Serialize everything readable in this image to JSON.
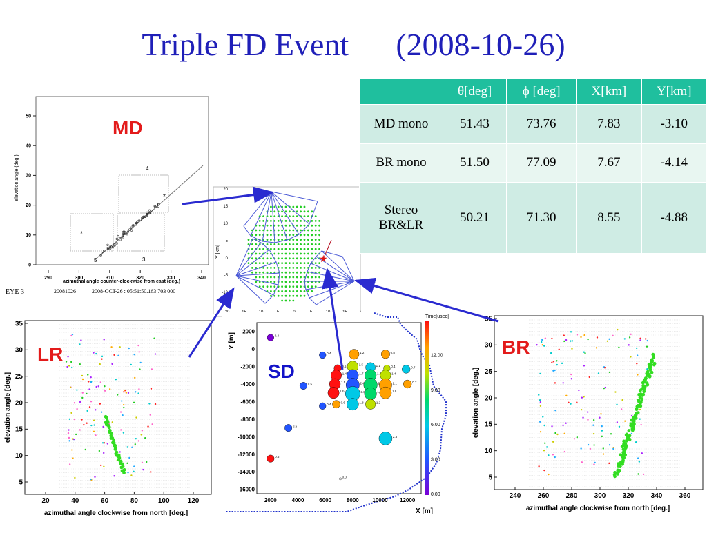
{
  "title": "Triple FD Event\t(2008-10-26)",
  "labels": {
    "md": "MD",
    "lr": "LR",
    "br": "BR",
    "sd": "SD"
  },
  "table": {
    "headers": [
      "",
      "θ[deg]",
      "ϕ [deg]",
      "X[km]",
      "Y[km]"
    ],
    "rows": [
      {
        "name": "MD mono",
        "theta": "51.43",
        "phi": "73.76",
        "x": "7.83",
        "y": "-3.10"
      },
      {
        "name": "BR mono",
        "theta": "51.50",
        "phi": "77.09",
        "x": "7.67",
        "y": "-4.14"
      },
      {
        "name": "Stereo BR&LR",
        "theta": "50.21",
        "phi": "71.30",
        "x": "8.55",
        "y": "-4.88"
      }
    ]
  },
  "md_plot": {
    "ylabel": "elevation angle (deg.)",
    "xlabel": "azimuthal angle counter-clockwise from east (deg.)",
    "xticks": [
      "290",
      "300",
      "310",
      "320",
      "330",
      "340"
    ],
    "yticks": [
      "0",
      "10",
      "20",
      "30",
      "40",
      "50"
    ],
    "mirror_labels": [
      "1",
      "2",
      "3",
      "4",
      "5"
    ],
    "footer": {
      "eye": "EYE 3",
      "date": "20081026",
      "time": "2008-OCT-26 : 05:51:50.163 703 000"
    }
  },
  "map_plot": {
    "ylabel": "Y [km]",
    "xticks": [
      "-20",
      "-15",
      "-10",
      "-5",
      "0",
      "5",
      "10",
      "15",
      "20"
    ],
    "yticks": [
      "20",
      "15",
      "10",
      "5",
      "0",
      "-5",
      "-10"
    ]
  },
  "lr_plot": {
    "ylabel": "elevation angle [deg.]",
    "xlabel": "azimuthal angle clockwise from north [deg.]",
    "xticks": [
      "20",
      "40",
      "60",
      "80",
      "100",
      "120"
    ],
    "yticks": [
      "35",
      "30",
      "25",
      "20",
      "15",
      "10",
      "5"
    ]
  },
  "br_plot": {
    "ylabel": "elevation angle [deg.]",
    "xlabel": "azimuthal angle clockwise from north [deg.]",
    "xticks": [
      "240",
      "260",
      "280",
      "300",
      "320",
      "340",
      "360"
    ],
    "yticks": [
      "35",
      "30",
      "25",
      "20",
      "15",
      "10",
      "5"
    ]
  },
  "sd_plot": {
    "ylabel": "Y [m]",
    "xlabel": "X [m]",
    "color_title": "Time[usec]",
    "xticks": [
      "2000",
      "4000",
      "6000",
      "8000",
      "10000",
      "12000"
    ],
    "yticks": [
      "2000",
      "0",
      "-2000",
      "-4000",
      "-6000",
      "-8000",
      "-10000",
      "-12000",
      "-14000",
      "-16000"
    ],
    "color_ticks": [
      "12.00",
      "9.00",
      "6.00",
      "3.00",
      "0.00"
    ],
    "counters": [
      {
        "x": 2000,
        "y": 1300,
        "label": "0.4",
        "t": 0.5
      },
      {
        "x": 5800,
        "y": -700,
        "label": "0.4",
        "t": 2.0
      },
      {
        "x": 8100,
        "y": -600,
        "label": "1.2",
        "t": 9.5
      },
      {
        "x": 10400,
        "y": -600,
        "label": "0.8",
        "t": 9.0
      },
      {
        "x": 6900,
        "y": -2200,
        "label": "0.5",
        "t": 11.0
      },
      {
        "x": 8000,
        "y": -2000,
        "label": "1.5",
        "t": 8.5
      },
      {
        "x": 9300,
        "y": -2100,
        "label": "1.1",
        "t": 4.0
      },
      {
        "x": 10500,
        "y": -2200,
        "label": "0.4",
        "t": 8.0
      },
      {
        "x": 11900,
        "y": -2300,
        "label": "0.7",
        "t": 3.5
      },
      {
        "x": 6800,
        "y": -3000,
        "label": "1.4",
        "t": 12.0
      },
      {
        "x": 8000,
        "y": -3000,
        "label": "1.7",
        "t": 2.0
      },
      {
        "x": 9300,
        "y": -3000,
        "label": "1.7",
        "t": 5.0
      },
      {
        "x": 10400,
        "y": -3000,
        "label": "1.4",
        "t": 8.5
      },
      {
        "x": 4400,
        "y": -4200,
        "label": "0.5",
        "t": 2.5
      },
      {
        "x": 6700,
        "y": -4000,
        "label": "1.5",
        "t": 12.0
      },
      {
        "x": 8000,
        "y": -4100,
        "label": "2.4",
        "t": 1.5
      },
      {
        "x": 9300,
        "y": -4100,
        "label": "2.5",
        "t": 6.5
      },
      {
        "x": 10400,
        "y": -4100,
        "label": "2.1",
        "t": 10.5
      },
      {
        "x": 12000,
        "y": -4000,
        "label": "0.7",
        "t": 9.0
      },
      {
        "x": 6600,
        "y": -5000,
        "label": "1.6",
        "t": 11.5
      },
      {
        "x": 8000,
        "y": -5100,
        "label": "3.0",
        "t": 3.0
      },
      {
        "x": 9300,
        "y": -5100,
        "label": "1.9",
        "t": 6.0
      },
      {
        "x": 10400,
        "y": -5000,
        "label": "1.8",
        "t": 9.5
      },
      {
        "x": 5800,
        "y": -6500,
        "label": "0.4",
        "t": 1.0
      },
      {
        "x": 6800,
        "y": -6300,
        "label": "0.6",
        "t": 10.0
      },
      {
        "x": 8000,
        "y": -6300,
        "label": "1.8",
        "t": 4.5
      },
      {
        "x": 9300,
        "y": -6300,
        "label": "1.2",
        "t": 7.0
      },
      {
        "x": 3300,
        "y": -9000,
        "label": "0.5",
        "t": 2.0
      },
      {
        "x": 10400,
        "y": -10200,
        "label": "2.3",
        "t": 4.5
      },
      {
        "x": 2000,
        "y": -12500,
        "label": "0.5",
        "t": 11.5
      },
      {
        "x": 7100,
        "y": -14800,
        "label": "0.0",
        "t": 0.0
      }
    ]
  }
}
